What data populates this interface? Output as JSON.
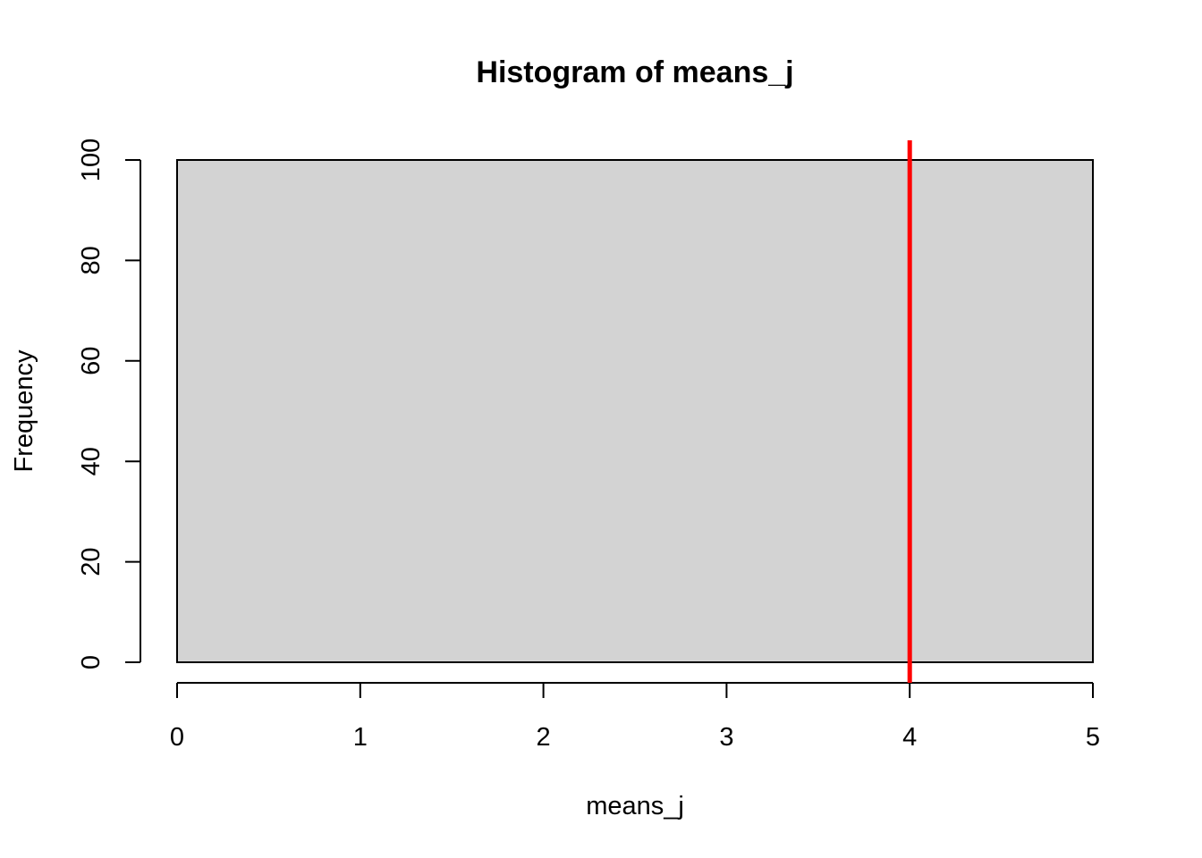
{
  "chart_data": {
    "type": "bar",
    "title": "Histogram of means_j",
    "xlabel": "means_j",
    "ylabel": "Frequency",
    "bins": [
      {
        "x0": 0,
        "x1": 5,
        "count": 100
      }
    ],
    "xlim": [
      0,
      5
    ],
    "ylim": [
      0,
      100
    ],
    "x_ticks": [
      0,
      1,
      2,
      3,
      4,
      5
    ],
    "y_ticks": [
      0,
      20,
      40,
      60,
      80,
      100
    ],
    "reference_line": {
      "x": 4,
      "color": "#ff0000"
    },
    "bar_fill": "#d3d3d3",
    "grid": false,
    "legend": "none"
  }
}
